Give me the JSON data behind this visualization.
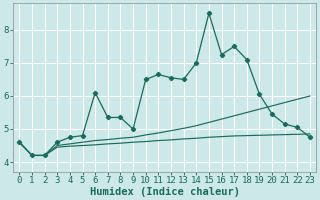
{
  "xlabel": "Humidex (Indice chaleur)",
  "bg_color": "#cce8e8",
  "line_color": "#1a6b5a",
  "grid_color": "#ffffff",
  "xlim": [
    -0.5,
    23.5
  ],
  "ylim": [
    3.7,
    8.8
  ],
  "x": [
    0,
    1,
    2,
    3,
    4,
    5,
    6,
    7,
    8,
    9,
    10,
    11,
    12,
    13,
    14,
    15,
    16,
    17,
    18,
    19,
    20,
    21,
    22,
    23
  ],
  "y_main": [
    4.6,
    4.2,
    4.2,
    4.6,
    4.75,
    4.8,
    6.1,
    5.35,
    5.35,
    5.0,
    6.5,
    6.65,
    6.55,
    6.5,
    7.0,
    8.5,
    7.25,
    7.5,
    7.1,
    6.05,
    5.45,
    5.15,
    5.05,
    4.75
  ],
  "y_line2": [
    4.6,
    4.2,
    4.2,
    4.5,
    4.55,
    4.6,
    4.65,
    4.68,
    4.72,
    4.75,
    4.82,
    4.88,
    4.95,
    5.02,
    5.1,
    5.2,
    5.3,
    5.4,
    5.5,
    5.6,
    5.7,
    5.8,
    5.9,
    6.0
  ],
  "y_line3": [
    4.6,
    4.2,
    4.2,
    4.45,
    4.48,
    4.5,
    4.52,
    4.55,
    4.57,
    4.6,
    4.62,
    4.65,
    4.67,
    4.7,
    4.72,
    4.75,
    4.77,
    4.79,
    4.8,
    4.81,
    4.82,
    4.83,
    4.84,
    4.85
  ],
  "xticks": [
    0,
    1,
    2,
    3,
    4,
    5,
    6,
    7,
    8,
    9,
    10,
    11,
    12,
    13,
    14,
    15,
    16,
    17,
    18,
    19,
    20,
    21,
    22,
    23
  ],
  "yticks": [
    4,
    5,
    6,
    7,
    8
  ],
  "tick_fontsize": 6.5,
  "label_fontsize": 7.5
}
